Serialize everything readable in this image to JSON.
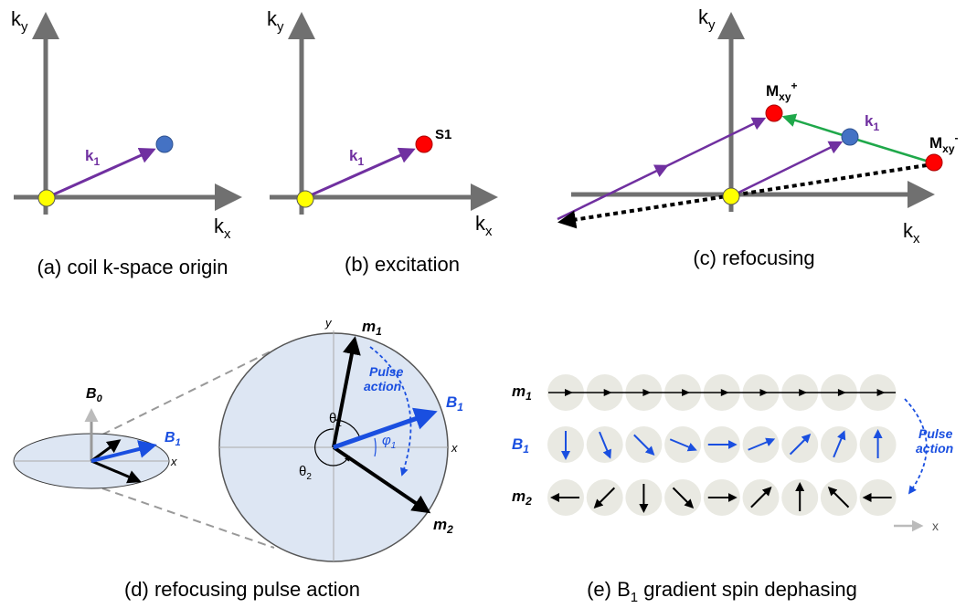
{
  "panels": [
    {
      "y_axis": {
        "base": "k",
        "sub": "y"
      },
      "x_axis": {
        "base": "k",
        "sub": "x"
      },
      "vector": {
        "base": "k",
        "sub": "1"
      },
      "caption": "(a) coil k-space origin"
    },
    {
      "y_axis": {
        "base": "k",
        "sub": "y"
      },
      "x_axis": {
        "base": "k",
        "sub": "x"
      },
      "vector": {
        "base": "k",
        "sub": "1"
      },
      "point": "S1",
      "caption": "(b) excitation"
    },
    {
      "y_axis": {
        "base": "k",
        "sub": "y"
      },
      "x_axis": {
        "base": "k",
        "sub": "x"
      },
      "vector": {
        "base": "k",
        "sub": "1"
      },
      "m_plus": {
        "base": "M",
        "sub": "xy",
        "sup": "+"
      },
      "m_minus": {
        "base": "M",
        "sub": "xy",
        "sup": "-"
      },
      "caption": "(c) refocusing"
    },
    {
      "b0": {
        "base": "B",
        "sub": "0"
      },
      "b1_small": {
        "base": "B",
        "sub": "1"
      },
      "x_small": "x",
      "y_axis": "y",
      "x_axis": "x",
      "m1": {
        "base": "m",
        "sub": "1"
      },
      "m2": {
        "base": "m",
        "sub": "2"
      },
      "b1": {
        "base": "B",
        "sub": "1"
      },
      "pulse_action": [
        "Pulse",
        "action"
      ],
      "theta1": {
        "base": "θ",
        "sub": "1"
      },
      "theta2": {
        "base": "θ",
        "sub": "2"
      },
      "phi1": {
        "base": "φ",
        "sub": "1"
      },
      "caption": "(d) refocusing pulse action"
    },
    {
      "rows": [
        {
          "base": "m",
          "sub": "1"
        },
        {
          "base": "B",
          "sub": "1"
        },
        {
          "base": "m",
          "sub": "2"
        }
      ],
      "pulse_action": [
        "Pulse",
        "action"
      ],
      "x_label": "x",
      "caption": {
        "before": "(e) B",
        "sub": "1",
        "after": " gradient spin dephasing"
      }
    }
  ]
}
